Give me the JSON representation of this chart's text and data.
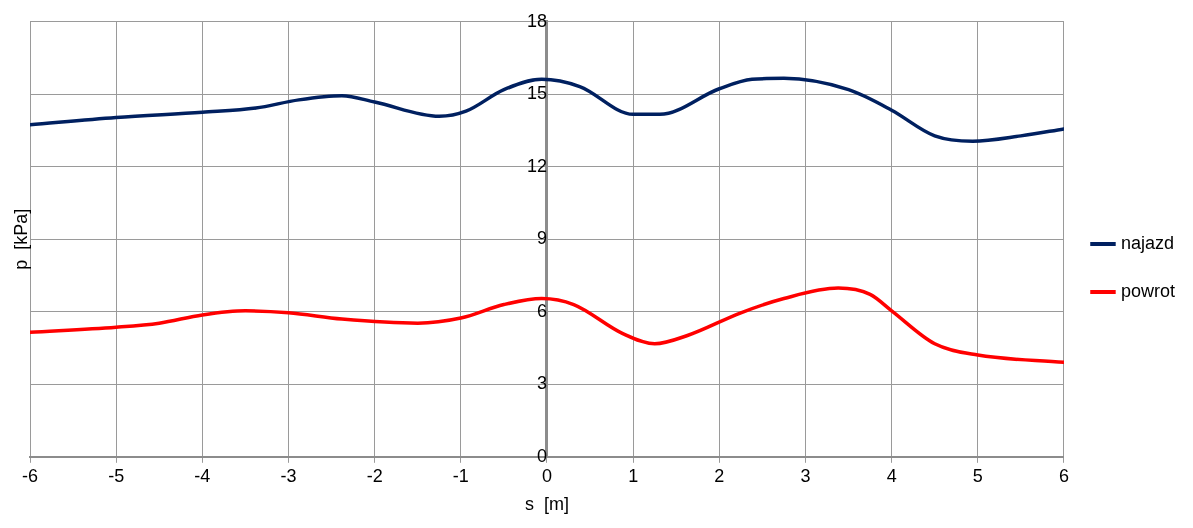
{
  "chart_data": {
    "type": "line",
    "xlabel": "s  [m]",
    "ylabel": "p  [kPa]",
    "xlim": [
      -6,
      6
    ],
    "xticks": [
      -6,
      -5,
      -4,
      -3,
      -2,
      -1,
      0,
      1,
      2,
      3,
      4,
      5,
      6
    ],
    "ylim": [
      0,
      18
    ],
    "yticks": [
      0,
      3,
      6,
      9,
      12,
      15,
      18
    ],
    "grid": true,
    "legend": "right",
    "marker": "none",
    "line_style": "solid",
    "series": [
      {
        "name": "najazd",
        "color": "#002060",
        "x": [
          -6,
          -5,
          -4,
          -3.38,
          -2.88,
          -2.38,
          -2,
          -1.25,
          -0.94,
          -0.5,
          -0.06,
          0.38,
          1,
          1.31,
          2,
          2.38,
          2.75,
          3.5,
          4,
          4.5,
          4.94,
          5.5,
          6
        ],
        "values": [
          13.74,
          14.04,
          14.26,
          14.43,
          14.77,
          14.94,
          14.68,
          14.09,
          14.3,
          15.19,
          15.62,
          15.32,
          14.17,
          14.17,
          15.23,
          15.62,
          15.66,
          15.19,
          14.34,
          13.28,
          13.06,
          13.28,
          13.57
        ]
      },
      {
        "name": "powrot",
        "color": "#ff0000",
        "x": [
          -6,
          -5,
          -4.5,
          -4,
          -3.5,
          -3,
          -2.38,
          -1.5,
          -1,
          -0.5,
          -0.06,
          0.31,
          0.88,
          1.25,
          1.63,
          2.25,
          2.75,
          3.38,
          3.75,
          4,
          4.5,
          5,
          6
        ],
        "values": [
          5.15,
          5.36,
          5.53,
          5.87,
          6.04,
          5.96,
          5.7,
          5.53,
          5.74,
          6.3,
          6.55,
          6.3,
          5.1,
          4.68,
          5.02,
          5.96,
          6.55,
          6.98,
          6.72,
          6.04,
          4.68,
          4.21,
          3.91
        ]
      }
    ]
  }
}
